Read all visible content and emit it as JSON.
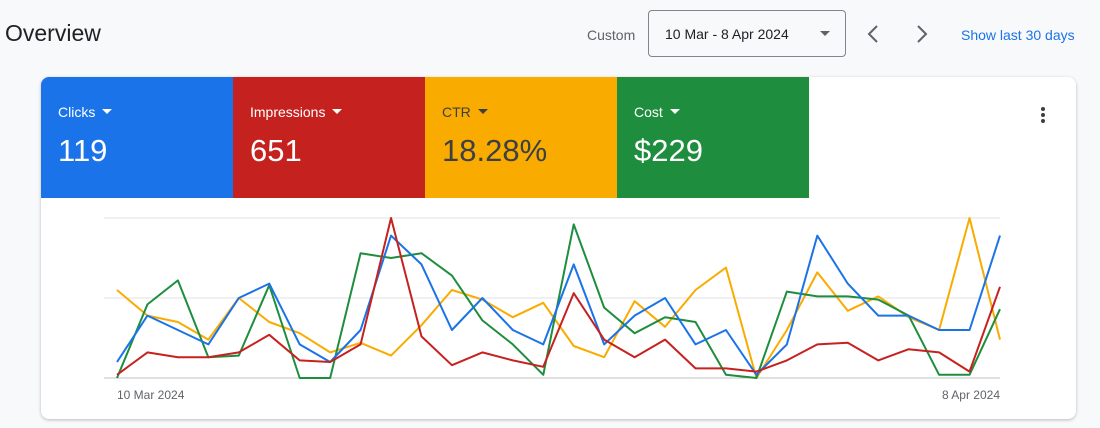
{
  "header": {
    "title": "Overview",
    "range_label": "Custom",
    "date_range": "10 Mar - 8 Apr 2024",
    "link": "Show last 30 days"
  },
  "chart_data": {
    "type": "line",
    "categories": [
      "10 Mar 2024",
      null,
      null,
      null,
      null,
      null,
      null,
      null,
      null,
      null,
      null,
      null,
      null,
      null,
      null,
      null,
      null,
      null,
      null,
      null,
      null,
      null,
      null,
      null,
      null,
      null,
      null,
      null,
      null,
      "8 Apr 2024"
    ],
    "ylim": [
      0,
      100
    ],
    "yticks": [
      0,
      50,
      100
    ],
    "grid": true,
    "series": [
      {
        "name": "Clicks",
        "total": "119",
        "color": "#1a73e8",
        "values": [
          10,
          39,
          30,
          21,
          50,
          59,
          21,
          10,
          30,
          89,
          71,
          30,
          50,
          30,
          21,
          71,
          21,
          39,
          50,
          21,
          30,
          2,
          21,
          89,
          59,
          39,
          39,
          30,
          30,
          89
        ]
      },
      {
        "name": "Impressions",
        "total": "651",
        "color": "#c5221f",
        "values": [
          2,
          16,
          13,
          13,
          16,
          27,
          11,
          10,
          21,
          100,
          26,
          8,
          16,
          11,
          7,
          53,
          24,
          13,
          24,
          6,
          6,
          4,
          11,
          21,
          22,
          11,
          18,
          16,
          4,
          57
        ]
      },
      {
        "name": "CTR",
        "total": "18.28%",
        "color": "#f9ab00",
        "values": [
          55,
          39,
          35,
          24,
          50,
          35,
          28,
          16,
          22,
          14,
          33,
          55,
          49,
          38,
          47,
          20,
          13,
          48,
          32,
          55,
          69,
          0,
          30,
          66,
          42,
          51,
          38,
          30,
          100,
          24
        ]
      },
      {
        "name": "Cost",
        "total": "$229",
        "color": "#1e8e3e",
        "values": [
          0,
          46,
          61,
          13,
          14,
          58,
          0,
          0,
          78,
          75,
          78,
          64,
          36,
          21,
          2,
          96,
          44,
          28,
          38,
          35,
          2,
          0,
          54,
          51,
          51,
          49,
          39,
          2,
          2,
          43
        ]
      }
    ]
  }
}
